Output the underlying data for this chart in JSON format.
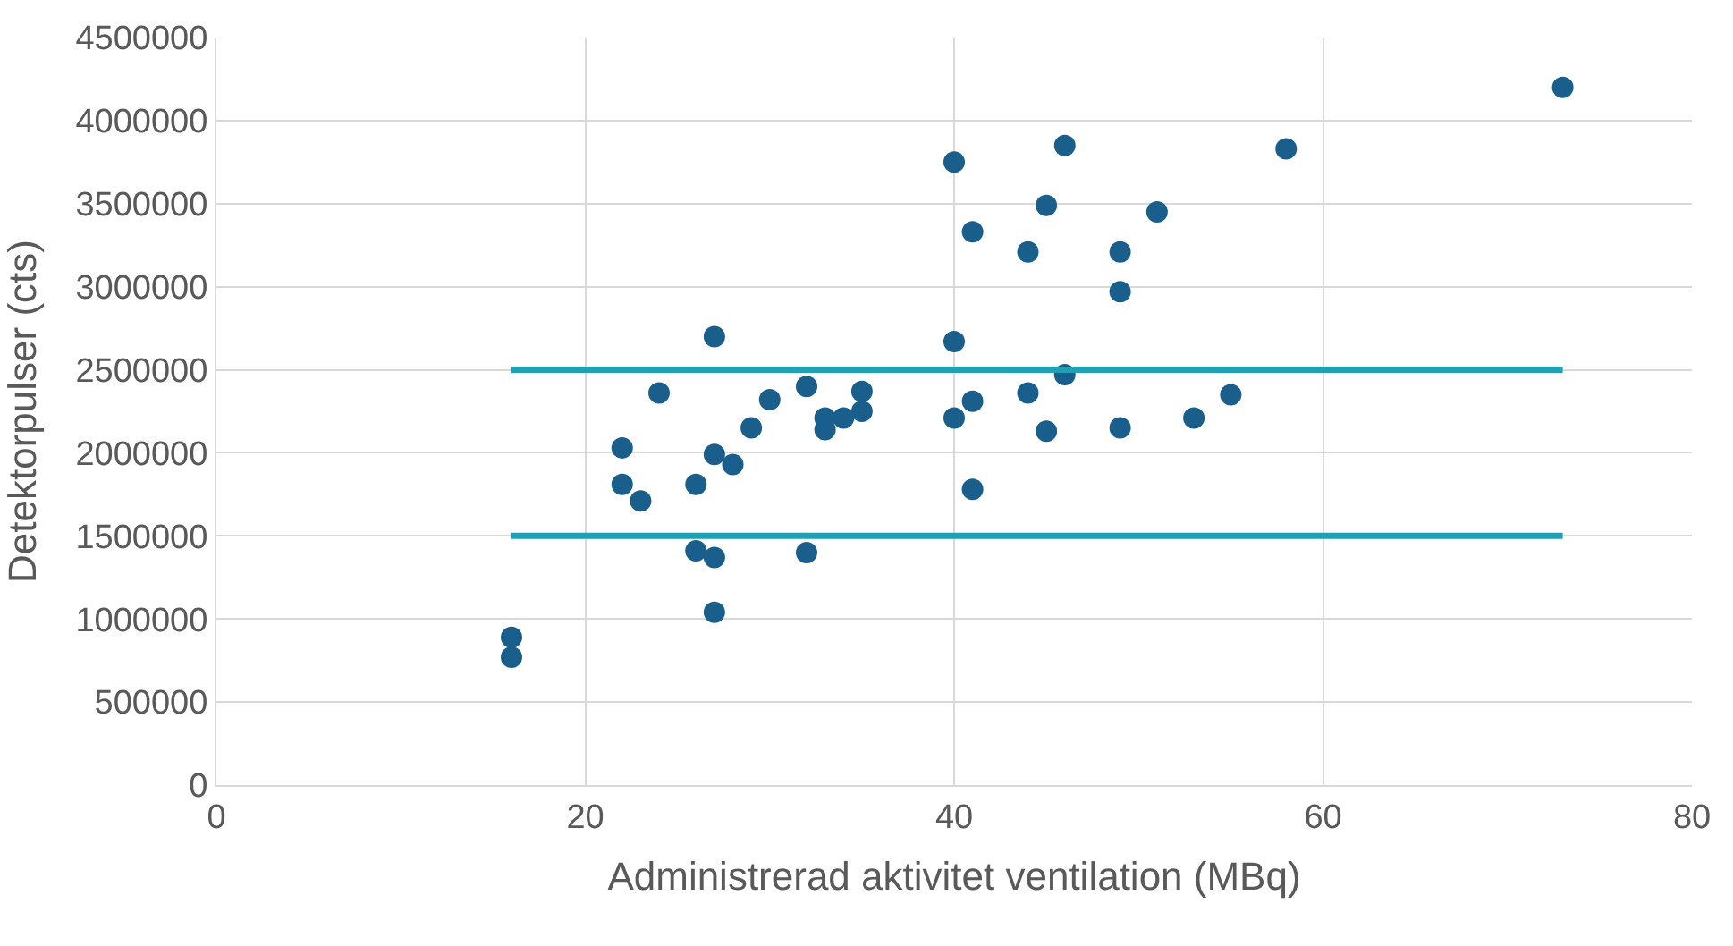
{
  "chart_data": {
    "type": "scatter",
    "xlabel": "Administrerad aktivitet ventilation (MBq)",
    "ylabel": "Detektorpulser (cts)",
    "xlim": [
      0,
      80
    ],
    "xticks": [
      0,
      20,
      40,
      60,
      80
    ],
    "ylim": [
      0,
      4500000
    ],
    "yticks": [
      0,
      500000,
      1000000,
      1500000,
      2000000,
      2500000,
      3000000,
      3500000,
      4000000,
      4500000
    ],
    "grid": true,
    "marker": "circle",
    "series": [
      {
        "color": "#1a5f8c",
        "x": [
          73,
          58,
          46,
          40,
          45,
          51,
          41,
          44,
          49,
          49,
          40,
          27,
          46,
          32,
          35,
          44,
          24,
          30,
          41,
          35,
          34,
          33,
          40,
          53,
          55,
          33,
          45,
          49,
          29,
          22,
          27,
          28,
          22,
          26,
          41,
          23,
          26,
          32,
          27,
          27,
          16,
          16
        ],
        "values": [
          4200000,
          3830000,
          3850000,
          3750000,
          3490000,
          3450000,
          3330000,
          3210000,
          3210000,
          2970000,
          2670000,
          2700000,
          2470000,
          2400000,
          2370000,
          2360000,
          2360000,
          2320000,
          2310000,
          2250000,
          2210000,
          2210000,
          2210000,
          2210000,
          2350000,
          2140000,
          2130000,
          2150000,
          2150000,
          2030000,
          1990000,
          1930000,
          1810000,
          1810000,
          1780000,
          1710000,
          1410000,
          1400000,
          1370000,
          1040000,
          890000,
          770000
        ]
      },
      {
        "type": "line",
        "marker": "none",
        "color": "#21a0b5",
        "x": [
          16,
          73
        ],
        "values": [
          2500000,
          2500000
        ]
      },
      {
        "type": "line",
        "marker": "none",
        "color": "#21a0b5",
        "x": [
          16,
          73
        ],
        "values": [
          1500000,
          1500000
        ]
      }
    ]
  }
}
